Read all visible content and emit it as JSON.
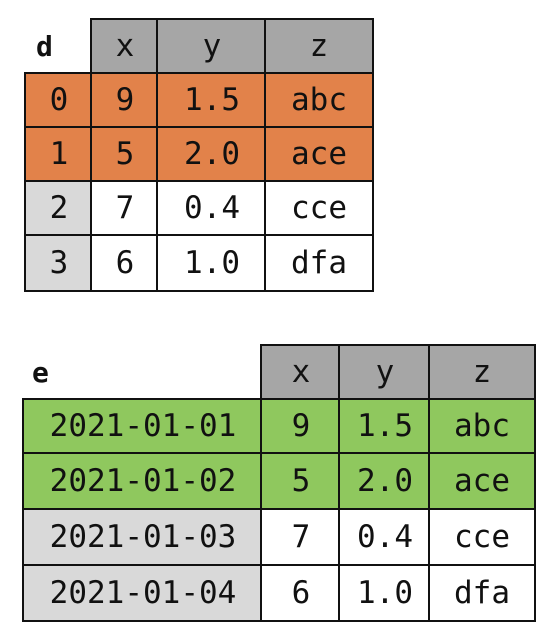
{
  "colors": {
    "header_bg": "#a6a6a6",
    "index_bg": "#d9d9d9",
    "plain_bg": "#ffffff",
    "highlight_d": "#e2824a",
    "highlight_e": "#8fc85e",
    "border": "#111111"
  },
  "table_d": {
    "name": "d",
    "columns": [
      "x",
      "y",
      "z"
    ],
    "rows": [
      {
        "index": "0",
        "x": "9",
        "y": "1.5",
        "z": "abc",
        "highlighted": true
      },
      {
        "index": "1",
        "x": "5",
        "y": "2.0",
        "z": "ace",
        "highlighted": true
      },
      {
        "index": "2",
        "x": "7",
        "y": "0.4",
        "z": "cce",
        "highlighted": false
      },
      {
        "index": "3",
        "x": "6",
        "y": "1.0",
        "z": "dfa",
        "highlighted": false
      }
    ]
  },
  "table_e": {
    "name": "e",
    "columns": [
      "x",
      "y",
      "z"
    ],
    "rows": [
      {
        "index": "2021-01-01",
        "x": "9",
        "y": "1.5",
        "z": "abc",
        "highlighted": true
      },
      {
        "index": "2021-01-02",
        "x": "5",
        "y": "2.0",
        "z": "ace",
        "highlighted": true
      },
      {
        "index": "2021-01-03",
        "x": "7",
        "y": "0.4",
        "z": "cce",
        "highlighted": false
      },
      {
        "index": "2021-01-04",
        "x": "6",
        "y": "1.0",
        "z": "dfa",
        "highlighted": false
      }
    ]
  }
}
